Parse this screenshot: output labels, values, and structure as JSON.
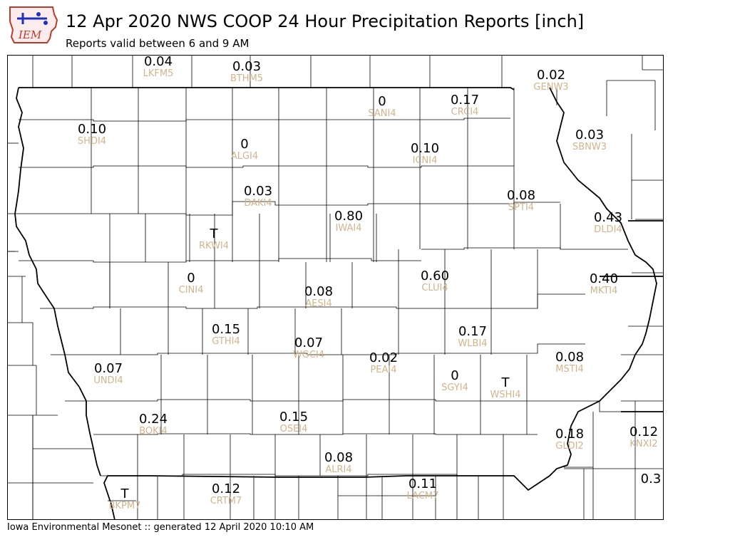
{
  "header": {
    "logo_text": "IEM",
    "title": "12 Apr 2020 NWS COOP 24 Hour Precipitation Reports [inch]",
    "subtitle": "Reports valid between 6 and 9 AM"
  },
  "footer": {
    "credit": "Iowa Environmental Mesonet :: generated 12 April 2020 10:10 AM"
  },
  "colors": {
    "station_id": "#d2b48c",
    "value": "#000000",
    "logo_red": "#c0392b",
    "logo_blue": "#1f2fbf"
  },
  "stations": [
    {
      "id": "LKFM5",
      "value": "0.04"
    },
    {
      "id": "BTHM5",
      "value": "0.03"
    },
    {
      "id": "GENW3",
      "value": "0.02"
    },
    {
      "id": "SANI4",
      "value": "0"
    },
    {
      "id": "CRCI4",
      "value": "0.17"
    },
    {
      "id": "SHDI4",
      "value": "0.10"
    },
    {
      "id": "SBNW3",
      "value": "0.03"
    },
    {
      "id": "ALGI4",
      "value": "0"
    },
    {
      "id": "ICNI4",
      "value": "0.10"
    },
    {
      "id": "DAKI4",
      "value": "0.03"
    },
    {
      "id": "SPTI4",
      "value": "0.08"
    },
    {
      "id": "IWAI4",
      "value": "0.80"
    },
    {
      "id": "DLDI4",
      "value": "0.43"
    },
    {
      "id": "RKWI4",
      "value": "T"
    },
    {
      "id": "CINI4",
      "value": "0"
    },
    {
      "id": "CLUI4",
      "value": "0.60"
    },
    {
      "id": "MKTI4",
      "value": "0.40"
    },
    {
      "id": "AESI4",
      "value": "0.08"
    },
    {
      "id": "GTHI4",
      "value": "0.15"
    },
    {
      "id": "WLBI4",
      "value": "0.17"
    },
    {
      "id": "WGCI4",
      "value": "0.07"
    },
    {
      "id": "PEAI4",
      "value": "0.02"
    },
    {
      "id": "MSTI4",
      "value": "0.08"
    },
    {
      "id": "UNDI4",
      "value": "0.07"
    },
    {
      "id": "SGYI4",
      "value": "0"
    },
    {
      "id": "WSHI4",
      "value": "T"
    },
    {
      "id": "BOKI4",
      "value": "0.24"
    },
    {
      "id": "OSEI4",
      "value": "0.15"
    },
    {
      "id": "GLDI2",
      "value": "0.18"
    },
    {
      "id": "KNXI2",
      "value": "0.12"
    },
    {
      "id": "ALRI4",
      "value": "0.08"
    },
    {
      "id": "BKPM7",
      "value": "T"
    },
    {
      "id": "CRTM7",
      "value": "0.12"
    },
    {
      "id": "LACM7",
      "value": "0.11"
    },
    {
      "id": "",
      "value": "0.3"
    }
  ]
}
